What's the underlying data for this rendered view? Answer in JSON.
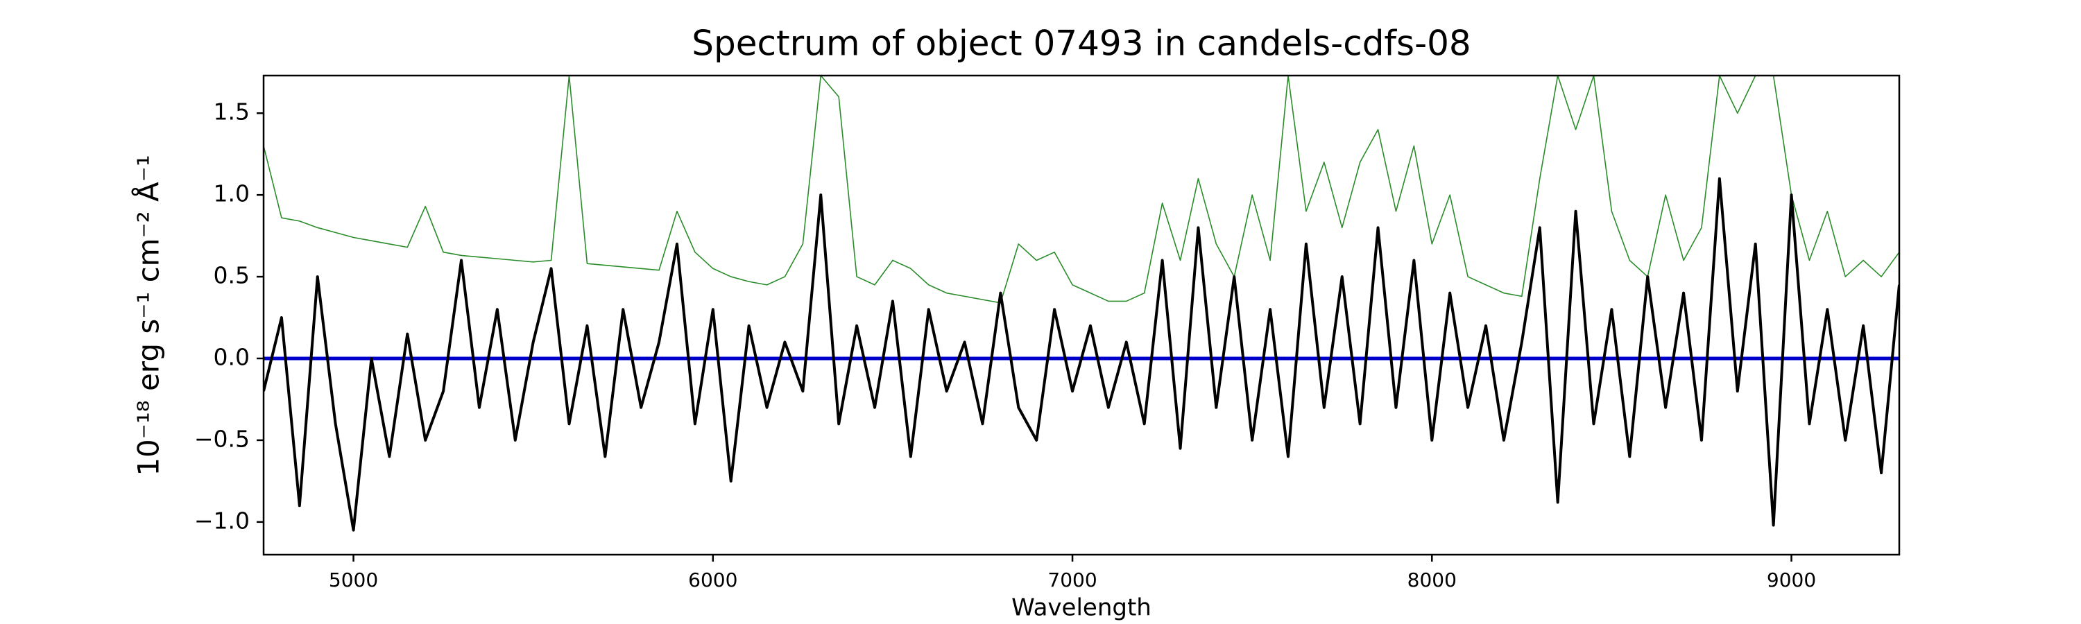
{
  "chart_data": {
    "type": "line",
    "title": "Spectrum of object 07493 in candels-cdfs-08",
    "x_label": "Wavelength",
    "y_label": "10⁻¹⁸ erg s⁻¹ cm⁻² Å⁻¹",
    "xlim": [
      4750,
      9300
    ],
    "ylim": [
      -1.2,
      1.73
    ],
    "xticks": [
      5000,
      6000,
      7000,
      8000,
      9000
    ],
    "yticks": [
      {
        "value": -1.0,
        "label": "−1.0"
      },
      {
        "value": -0.5,
        "label": "−0.5"
      },
      {
        "value": 0,
        "label": "0.0"
      },
      0.5,
      {
        "value": 1,
        "label": "1.0"
      },
      1.5
    ],
    "grid": false,
    "x": [
      4750,
      4800,
      4850,
      4900,
      4950,
      5000,
      5050,
      5100,
      5150,
      5200,
      5250,
      5300,
      5350,
      5400,
      5450,
      5500,
      5550,
      5600,
      5650,
      5700,
      5750,
      5800,
      5850,
      5900,
      5950,
      6000,
      6050,
      6100,
      6150,
      6200,
      6250,
      6300,
      6350,
      6400,
      6450,
      6500,
      6550,
      6600,
      6650,
      6700,
      6750,
      6800,
      6850,
      6900,
      6950,
      7000,
      7050,
      7100,
      7150,
      7200,
      7250,
      7300,
      7350,
      7400,
      7450,
      7500,
      7550,
      7600,
      7650,
      7700,
      7750,
      7800,
      7850,
      7900,
      7950,
      8000,
      8050,
      8100,
      8150,
      8200,
      8250,
      8300,
      8350,
      8400,
      8450,
      8500,
      8550,
      8600,
      8650,
      8700,
      8750,
      8800,
      8850,
      8900,
      8950,
      9000,
      9050,
      9100,
      9150,
      9200,
      9250,
      9300
    ],
    "series": [
      {
        "color": "#2a8c2a",
        "width": 1.6,
        "values": [
          1.3,
          0.86,
          0.84,
          0.8,
          0.77,
          0.74,
          0.72,
          0.7,
          0.68,
          0.93,
          0.65,
          0.63,
          0.62,
          0.61,
          0.6,
          0.59,
          0.6,
          1.73,
          0.58,
          0.57,
          0.56,
          0.55,
          0.54,
          0.9,
          0.65,
          0.55,
          0.5,
          0.47,
          0.45,
          0.5,
          0.7,
          1.73,
          1.6,
          0.5,
          0.45,
          0.6,
          0.55,
          0.45,
          0.4,
          0.38,
          0.36,
          0.34,
          0.7,
          0.6,
          0.65,
          0.45,
          0.4,
          0.35,
          0.35,
          0.4,
          0.95,
          0.6,
          1.1,
          0.7,
          0.5,
          1.0,
          0.6,
          1.73,
          0.9,
          1.2,
          0.8,
          1.2,
          1.4,
          0.9,
          1.3,
          0.7,
          1.0,
          0.5,
          0.45,
          0.4,
          0.38,
          1.1,
          1.73,
          1.4,
          1.73,
          0.9,
          0.6,
          0.5,
          1.0,
          0.6,
          0.8,
          1.73,
          1.5,
          1.73,
          1.73,
          1.0,
          0.6,
          0.9,
          0.5,
          0.6,
          0.5,
          0.65
        ]
      },
      {
        "color": "#0000cc",
        "width": 5,
        "x": [
          4750,
          9300
        ],
        "values": [
          0,
          0
        ]
      },
      {
        "color": "#000000",
        "width": 4,
        "values": [
          -0.2,
          0.25,
          -0.9,
          0.5,
          -0.4,
          -1.05,
          0.0,
          -0.6,
          0.15,
          -0.5,
          -0.2,
          0.6,
          -0.3,
          0.3,
          -0.5,
          0.1,
          0.55,
          -0.4,
          0.2,
          -0.6,
          0.3,
          -0.3,
          0.1,
          0.7,
          -0.4,
          0.3,
          -0.75,
          0.2,
          -0.3,
          0.1,
          -0.2,
          1.0,
          -0.4,
          0.2,
          -0.3,
          0.35,
          -0.6,
          0.3,
          -0.2,
          0.1,
          -0.4,
          0.4,
          -0.3,
          -0.5,
          0.3,
          -0.2,
          0.2,
          -0.3,
          0.1,
          -0.4,
          0.6,
          -0.55,
          0.8,
          -0.3,
          0.5,
          -0.5,
          0.3,
          -0.6,
          0.7,
          -0.3,
          0.5,
          -0.4,
          0.8,
          -0.3,
          0.6,
          -0.5,
          0.4,
          -0.3,
          0.2,
          -0.5,
          0.1,
          0.8,
          -0.88,
          0.9,
          -0.4,
          0.3,
          -0.6,
          0.5,
          -0.3,
          0.4,
          -0.5,
          1.1,
          -0.2,
          0.7,
          -1.02,
          1.0,
          -0.4,
          0.3,
          -0.5,
          0.2,
          -0.7,
          0.45
        ]
      }
    ]
  }
}
